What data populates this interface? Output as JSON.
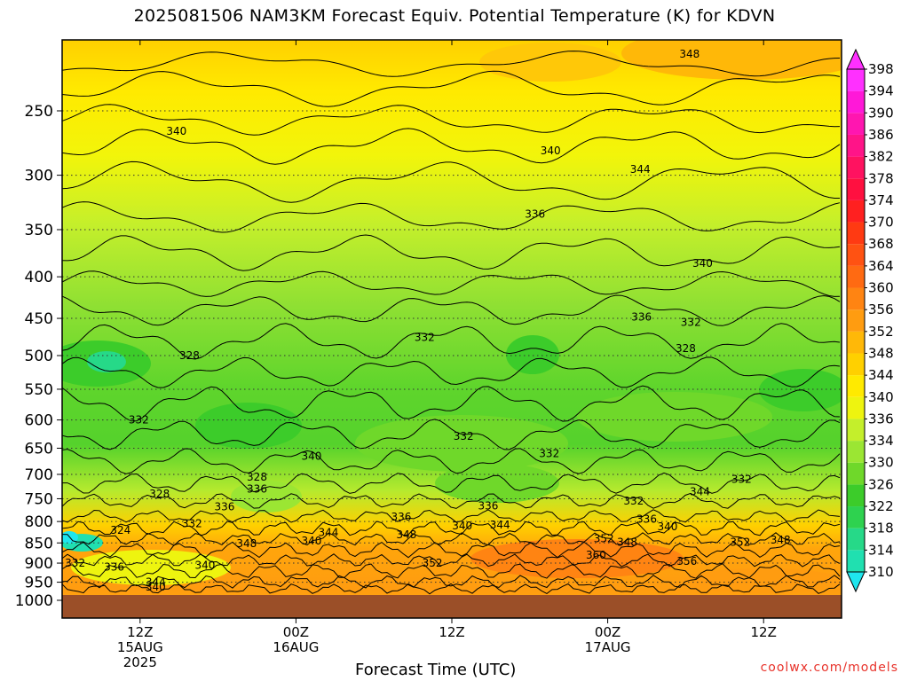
{
  "title": "2025081506 NAM3KM Forecast Equiv. Potential Temperature (K) for KDVN",
  "xlabel": "Forecast Time (UTC)",
  "credit": "coolwx.com/models",
  "chart_data": {
    "type": "heatmap",
    "title": "2025081506 NAM3KM Forecast Equiv. Potential Temperature (K) for KDVN",
    "xlabel": "Forecast Time (UTC)",
    "ylabel": "",
    "x_ticks": [
      {
        "hour": 6,
        "lines": [
          "12Z",
          "15AUG",
          "2025"
        ]
      },
      {
        "hour": 18,
        "lines": [
          "00Z",
          "16AUG"
        ]
      },
      {
        "hour": 30,
        "lines": [
          "12Z"
        ]
      },
      {
        "hour": 42,
        "lines": [
          "00Z",
          "17AUG"
        ]
      },
      {
        "hour": 54,
        "lines": [
          "12Z"
        ]
      }
    ],
    "xlim_hours": [
      0,
      60
    ],
    "y_ticks": [
      250,
      300,
      350,
      400,
      450,
      500,
      550,
      600,
      650,
      700,
      750,
      800,
      850,
      900,
      950,
      1000
    ],
    "ylim_hPa": [
      1000,
      200
    ],
    "y_scale": "log-pressure",
    "colorbar": {
      "levels": [
        310,
        314,
        318,
        322,
        326,
        330,
        334,
        336,
        340,
        344,
        348,
        352,
        356,
        360,
        364,
        368,
        370,
        374,
        378,
        382,
        386,
        390,
        394,
        398
      ],
      "colors": [
        "#1fe6ee",
        "#20e0b0",
        "#26d988",
        "#2ed24f",
        "#3ccc2a",
        "#6fd82a",
        "#9be633",
        "#c4ef2b",
        "#eef40f",
        "#ffea00",
        "#ffd000",
        "#ffb808",
        "#ff9c10",
        "#ff8412",
        "#ff6a12",
        "#ff5212",
        "#ff3a12",
        "#ff2020",
        "#ff1040",
        "#ff1260",
        "#ff1488",
        "#ff16b0",
        "#ff18d8",
        "#ff30ff"
      ],
      "units": "K"
    },
    "contour_labels": [
      {
        "v": "340",
        "hour": 8.8,
        "p": 265
      },
      {
        "v": "348",
        "hour": 48.3,
        "p": 213
      },
      {
        "v": "340",
        "hour": 37.6,
        "p": 280
      },
      {
        "v": "344",
        "hour": 44.5,
        "p": 295
      },
      {
        "v": "336",
        "hour": 36.4,
        "p": 335
      },
      {
        "v": "340",
        "hour": 49.3,
        "p": 385
      },
      {
        "v": "332",
        "hour": 27.9,
        "p": 475
      },
      {
        "v": "336",
        "hour": 44.6,
        "p": 448
      },
      {
        "v": "332",
        "hour": 48.4,
        "p": 455
      },
      {
        "v": "328",
        "hour": 9.8,
        "p": 500
      },
      {
        "v": "328",
        "hour": 48.0,
        "p": 490
      },
      {
        "v": "332",
        "hour": 5.9,
        "p": 600
      },
      {
        "v": "332",
        "hour": 30.9,
        "p": 628
      },
      {
        "v": "332",
        "hour": 37.5,
        "p": 660
      },
      {
        "v": "340",
        "hour": 19.2,
        "p": 665
      },
      {
        "v": "328",
        "hour": 15.0,
        "p": 705
      },
      {
        "v": "336",
        "hour": 15.0,
        "p": 730
      },
      {
        "v": "328",
        "hour": 7.5,
        "p": 740
      },
      {
        "v": "336",
        "hour": 12.5,
        "p": 767
      },
      {
        "v": "336",
        "hour": 32.8,
        "p": 765
      },
      {
        "v": "332",
        "hour": 44.0,
        "p": 755
      },
      {
        "v": "344",
        "hour": 49.1,
        "p": 735
      },
      {
        "v": "332",
        "hour": 52.3,
        "p": 710
      },
      {
        "v": "336",
        "hour": 26.1,
        "p": 790
      },
      {
        "v": "340",
        "hour": 30.8,
        "p": 810
      },
      {
        "v": "344",
        "hour": 33.7,
        "p": 808
      },
      {
        "v": "336",
        "hour": 45.0,
        "p": 795
      },
      {
        "v": "340",
        "hour": 46.6,
        "p": 812
      },
      {
        "v": "324",
        "hour": 4.5,
        "p": 820
      },
      {
        "v": "332",
        "hour": 10.0,
        "p": 805
      },
      {
        "v": "344",
        "hour": 20.5,
        "p": 825
      },
      {
        "v": "348",
        "hour": 26.5,
        "p": 830
      },
      {
        "v": "352",
        "hour": 41.7,
        "p": 840
      },
      {
        "v": "348",
        "hour": 43.5,
        "p": 848
      },
      {
        "v": "352",
        "hour": 52.2,
        "p": 848
      },
      {
        "v": "348",
        "hour": 55.3,
        "p": 843
      },
      {
        "v": "340",
        "hour": 19.2,
        "p": 845
      },
      {
        "v": "348",
        "hour": 14.2,
        "p": 852
      },
      {
        "v": "360",
        "hour": 41.1,
        "p": 880
      },
      {
        "v": "356",
        "hour": 48.1,
        "p": 895
      },
      {
        "v": "352",
        "hour": 28.5,
        "p": 900
      },
      {
        "v": "332",
        "hour": 1.0,
        "p": 900
      },
      {
        "v": "336",
        "hour": 4.0,
        "p": 910
      },
      {
        "v": "340",
        "hour": 11.0,
        "p": 905
      },
      {
        "v": "344",
        "hour": 7.2,
        "p": 950
      },
      {
        "v": "340",
        "hour": 7.2,
        "p": 963
      }
    ]
  }
}
